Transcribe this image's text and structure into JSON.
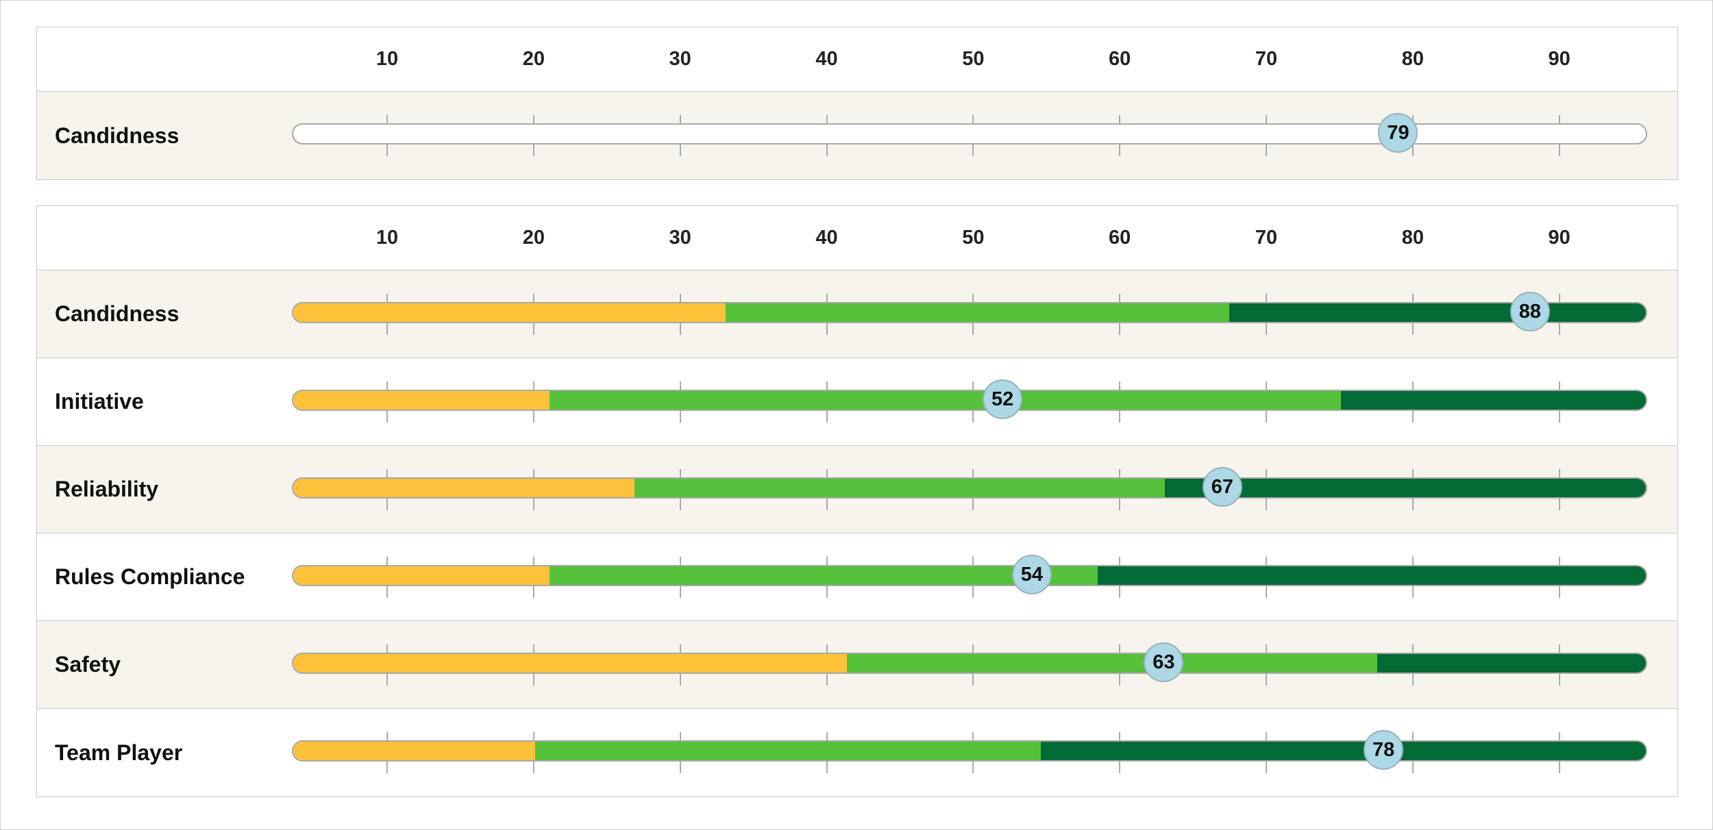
{
  "chart_data": [
    {
      "type": "bar",
      "axis": {
        "ticks": [
          10,
          20,
          30,
          40,
          50,
          60,
          70,
          80,
          90
        ],
        "range": [
          3.5,
          96
        ]
      },
      "rows": [
        {
          "label": "Candidness",
          "value": 79,
          "segments": []
        }
      ]
    },
    {
      "type": "bar",
      "axis": {
        "ticks": [
          10,
          20,
          30,
          40,
          50,
          60,
          70,
          80,
          90
        ],
        "range": [
          3.5,
          96
        ]
      },
      "band_colors": {
        "low": "#fec13a",
        "mid": "#55c13a",
        "high": "#016a35"
      },
      "rows": [
        {
          "label": "Candidness",
          "value": 88,
          "segments": [
            {
              "from": 3.5,
              "to": 33,
              "band": "low"
            },
            {
              "from": 33,
              "to": 67.4,
              "band": "mid"
            },
            {
              "from": 67.4,
              "to": 96,
              "band": "high"
            }
          ]
        },
        {
          "label": "Initiative",
          "value": 52,
          "segments": [
            {
              "from": 3.5,
              "to": 21,
              "band": "low"
            },
            {
              "from": 21,
              "to": 75,
              "band": "mid"
            },
            {
              "from": 75,
              "to": 96,
              "band": "high"
            }
          ]
        },
        {
          "label": "Reliability",
          "value": 67,
          "segments": [
            {
              "from": 3.5,
              "to": 26.8,
              "band": "low"
            },
            {
              "from": 26.8,
              "to": 63,
              "band": "mid"
            },
            {
              "from": 63,
              "to": 96,
              "band": "high"
            }
          ]
        },
        {
          "label": "Rules Compliance",
          "value": 54,
          "segments": [
            {
              "from": 3.5,
              "to": 21,
              "band": "low"
            },
            {
              "from": 21,
              "to": 58.4,
              "band": "mid"
            },
            {
              "from": 58.4,
              "to": 96,
              "band": "high"
            }
          ]
        },
        {
          "label": "Safety",
          "value": 63,
          "segments": [
            {
              "from": 3.5,
              "to": 41.3,
              "band": "low"
            },
            {
              "from": 41.3,
              "to": 77.5,
              "band": "mid"
            },
            {
              "from": 77.5,
              "to": 96,
              "band": "high"
            }
          ]
        },
        {
          "label": "Team Player",
          "value": 78,
          "segments": [
            {
              "from": 3.5,
              "to": 20,
              "band": "low"
            },
            {
              "from": 20,
              "to": 54.5,
              "band": "mid"
            },
            {
              "from": 54.5,
              "to": 96,
              "band": "high"
            }
          ]
        }
      ]
    }
  ]
}
